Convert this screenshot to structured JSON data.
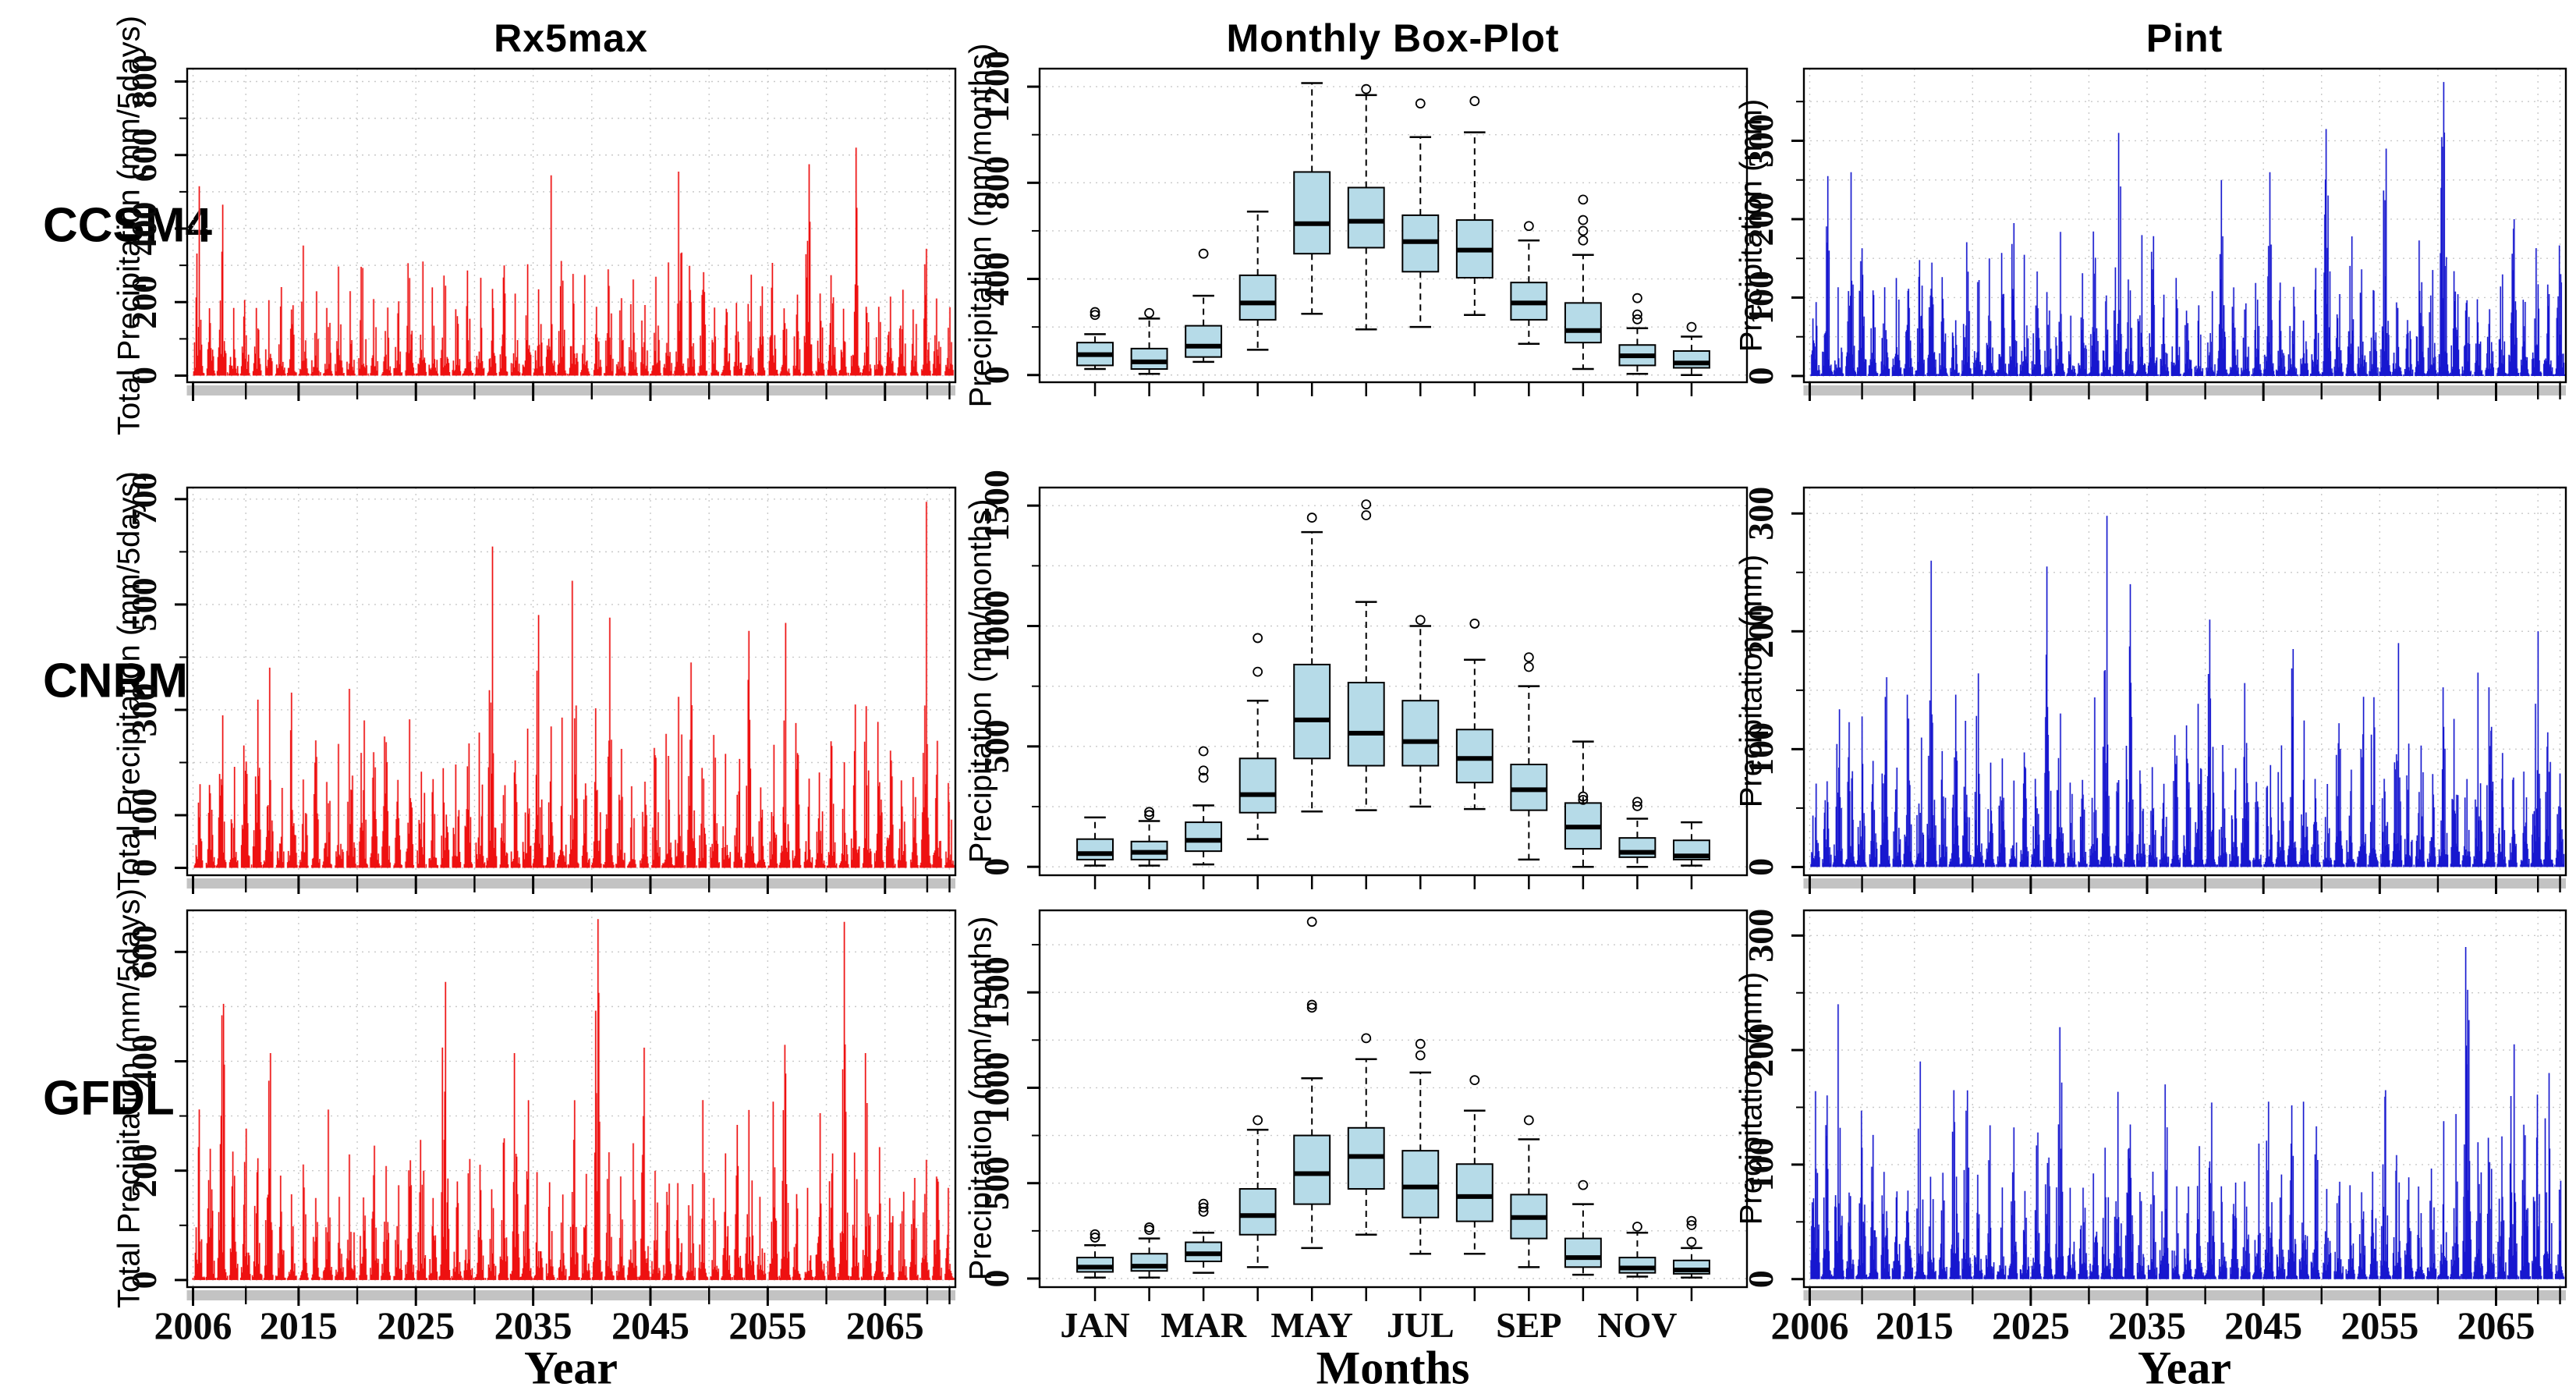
{
  "figure": {
    "column_titles": [
      "Rx5max",
      "Monthly Box-Plot",
      "Pint"
    ],
    "row_labels": [
      "CCSM4",
      "CNRM",
      "GFDL"
    ],
    "x_axis_titles": {
      "left": "Year",
      "middle": "Months",
      "right": "Year"
    },
    "colors": {
      "red_series": "#ee1111",
      "red_halo": "#f7bcbc",
      "blue_series": "#1717cf",
      "blue_halo": "#c9cdf3",
      "box_fill": "#b6dbe8",
      "grey_bar": "#c3c3c3",
      "grid": "#c9c9c9",
      "ink": "#000000"
    }
  },
  "chart_data": [
    {
      "type": "line",
      "subtype": "spike-series",
      "model": "CCSM4",
      "column": "Rx5max",
      "xlabel": "Year",
      "ylabel": "Total Precipitation (mm/5days)",
      "x_range": [
        2006,
        2070
      ],
      "x_tick_labels": [
        "2006",
        "2015",
        "2025",
        "2035",
        "2045",
        "2055",
        "2065"
      ],
      "x_tick_years": [
        2006,
        2015,
        2025,
        2035,
        2045,
        2055,
        2065
      ],
      "ylim": [
        0,
        800
      ],
      "y_axis_pad": [
        -18,
        835
      ],
      "y_tick_labels": [
        0,
        200,
        400,
        600,
        800
      ],
      "y_tick_marks": [
        0,
        100,
        200,
        300,
        400,
        500,
        600,
        700,
        800
      ],
      "series_color": "#ee1111",
      "halo_color": "#f7bcbc",
      "annual_peaks": {
        "typical_min": 180,
        "typical_max": 370,
        "notable": {
          "2006": 515,
          "2008": 465,
          "2036": 545,
          "2047": 555,
          "2058": 575,
          "2062": 620
        }
      },
      "seed": 101
    },
    {
      "type": "boxplot",
      "model": "CCSM4",
      "column": "Monthly Box-Plot",
      "xlabel": "Months",
      "ylabel": "Precipitation (mm/months)",
      "categories": [
        "JAN",
        "FEB",
        "MAR",
        "APR",
        "MAY",
        "JUN",
        "JUL",
        "AUG",
        "SEP",
        "OCT",
        "NOV",
        "DEC"
      ],
      "x_tick_labels": [
        "JAN",
        "MAR",
        "MAY",
        "JUL",
        "SEP",
        "NOV"
      ],
      "ylim": [
        0,
        1200
      ],
      "y_axis_pad": [
        -30,
        1275
      ],
      "y_tick_labels": [
        0,
        400,
        800,
        1200
      ],
      "y_tick_marks": [
        0,
        200,
        400,
        600,
        800,
        1000,
        1200
      ],
      "box_fill": "#b6dbe8",
      "stats": [
        {
          "month": "JAN",
          "whisker_low": 25,
          "q1": 40,
          "median": 85,
          "q3": 135,
          "whisker_high": 170,
          "outliers": [
            250,
            262
          ]
        },
        {
          "month": "FEB",
          "whisker_low": 5,
          "q1": 25,
          "median": 55,
          "q3": 110,
          "whisker_high": 235,
          "outliers": [
            258
          ]
        },
        {
          "month": "MAR",
          "whisker_low": 55,
          "q1": 75,
          "median": 120,
          "q3": 205,
          "whisker_high": 330,
          "outliers": [
            505
          ]
        },
        {
          "month": "APR",
          "whisker_low": 105,
          "q1": 230,
          "median": 300,
          "q3": 415,
          "whisker_high": 680,
          "outliers": []
        },
        {
          "month": "MAY",
          "whisker_low": 255,
          "q1": 505,
          "median": 630,
          "q3": 845,
          "whisker_high": 1215,
          "outliers": []
        },
        {
          "month": "JUN",
          "whisker_low": 190,
          "q1": 530,
          "median": 640,
          "q3": 780,
          "whisker_high": 1165,
          "outliers": [
            1190
          ]
        },
        {
          "month": "JUL",
          "whisker_low": 200,
          "q1": 430,
          "median": 555,
          "q3": 665,
          "whisker_high": 990,
          "outliers": [
            1130
          ]
        },
        {
          "month": "AUG",
          "whisker_low": 250,
          "q1": 405,
          "median": 520,
          "q3": 645,
          "whisker_high": 1010,
          "outliers": [
            1140
          ]
        },
        {
          "month": "SEP",
          "whisker_low": 130,
          "q1": 230,
          "median": 300,
          "q3": 385,
          "whisker_high": 560,
          "outliers": [
            620
          ]
        },
        {
          "month": "OCT",
          "whisker_low": 25,
          "q1": 135,
          "median": 185,
          "q3": 300,
          "whisker_high": 500,
          "outliers": [
            560,
            600,
            645,
            730
          ]
        },
        {
          "month": "NOV",
          "whisker_low": 5,
          "q1": 40,
          "median": 80,
          "q3": 125,
          "whisker_high": 195,
          "outliers": [
            232,
            252,
            320
          ]
        },
        {
          "month": "DEC",
          "whisker_low": 0,
          "q1": 30,
          "median": 50,
          "q3": 100,
          "whisker_high": 160,
          "outliers": [
            200
          ]
        }
      ]
    },
    {
      "type": "line",
      "subtype": "spike-series",
      "model": "CCSM4",
      "column": "Pint",
      "xlabel": "Year",
      "ylabel": "Precipitation (mm)",
      "x_range": [
        2006,
        2070
      ],
      "x_tick_labels": [
        "2006",
        "2015",
        "2025",
        "2035",
        "2045",
        "2055",
        "2065"
      ],
      "x_tick_years": [
        2006,
        2015,
        2025,
        2035,
        2045,
        2055,
        2065
      ],
      "ylim": [
        0,
        300
      ],
      "y_axis_pad": [
        -8,
        392
      ],
      "y_tick_labels": [
        0,
        100,
        200,
        300
      ],
      "y_tick_marks": [
        0,
        50,
        100,
        150,
        200,
        250,
        300,
        350
      ],
      "series_color": "#1717cf",
      "halo_color": "#c9cdf3",
      "annual_peaks": {
        "typical_min": 70,
        "typical_max": 185,
        "notable": {
          "2007": 255,
          "2009": 260,
          "2023": 195,
          "2032": 310,
          "2041": 250,
          "2045": 260,
          "2050": 315,
          "2055": 290,
          "2060": 375,
          "2066": 200
        }
      },
      "seed": 404
    },
    {
      "type": "line",
      "subtype": "spike-series",
      "model": "CNRM",
      "column": "Rx5max",
      "xlabel": "Year",
      "ylabel": "Total Precipitation (mm/5days)",
      "x_range": [
        2006,
        2070
      ],
      "x_tick_labels": [
        "2006",
        "2015",
        "2025",
        "2035",
        "2045",
        "2055",
        "2065"
      ],
      "x_tick_years": [
        2006,
        2015,
        2025,
        2035,
        2045,
        2055,
        2065
      ],
      "ylim": [
        0,
        700
      ],
      "y_axis_pad": [
        -14,
        722
      ],
      "y_tick_labels": [
        0,
        100,
        300,
        500,
        700
      ],
      "y_tick_marks": [
        0,
        100,
        200,
        300,
        400,
        500,
        600,
        700
      ],
      "series_color": "#ee1111",
      "halo_color": "#f7bcbc",
      "annual_peaks": {
        "typical_min": 150,
        "typical_max": 340,
        "notable": {
          "2012": 380,
          "2019": 340,
          "2031": 610,
          "2035": 480,
          "2038": 545,
          "2041": 475,
          "2048": 390,
          "2053": 450,
          "2056": 465,
          "2068": 695
        }
      },
      "seed": 202
    },
    {
      "type": "boxplot",
      "model": "CNRM",
      "column": "Monthly Box-Plot",
      "xlabel": "Months",
      "ylabel": "Precipitation (mm/months)",
      "categories": [
        "JAN",
        "FEB",
        "MAR",
        "APR",
        "MAY",
        "JUN",
        "JUL",
        "AUG",
        "SEP",
        "OCT",
        "NOV",
        "DEC"
      ],
      "x_tick_labels": [
        "JAN",
        "MAR",
        "MAY",
        "JUL",
        "SEP",
        "NOV"
      ],
      "ylim": [
        0,
        1500
      ],
      "y_axis_pad": [
        -35,
        1575
      ],
      "y_tick_labels": [
        0,
        500,
        1000,
        1500
      ],
      "y_tick_marks": [
        0,
        250,
        500,
        750,
        1000,
        1250,
        1500
      ],
      "box_fill": "#b6dbe8",
      "stats": [
        {
          "month": "JAN",
          "whisker_low": 5,
          "q1": 30,
          "median": 55,
          "q3": 115,
          "whisker_high": 205,
          "outliers": []
        },
        {
          "month": "FEB",
          "whisker_low": 5,
          "q1": 30,
          "median": 60,
          "q3": 105,
          "whisker_high": 190,
          "outliers": [
            215,
            228
          ]
        },
        {
          "month": "MAR",
          "whisker_low": 10,
          "q1": 65,
          "median": 110,
          "q3": 185,
          "whisker_high": 255,
          "outliers": [
            370,
            400,
            480
          ]
        },
        {
          "month": "APR",
          "whisker_low": 115,
          "q1": 225,
          "median": 300,
          "q3": 450,
          "whisker_high": 690,
          "outliers": [
            810,
            950
          ]
        },
        {
          "month": "MAY",
          "whisker_low": 230,
          "q1": 450,
          "median": 610,
          "q3": 840,
          "whisker_high": 1390,
          "outliers": [
            1450
          ]
        },
        {
          "month": "JUN",
          "whisker_low": 235,
          "q1": 420,
          "median": 555,
          "q3": 765,
          "whisker_high": 1100,
          "outliers": [
            1460,
            1505
          ]
        },
        {
          "month": "JUL",
          "whisker_low": 250,
          "q1": 420,
          "median": 520,
          "q3": 690,
          "whisker_high": 1000,
          "outliers": [
            1025
          ]
        },
        {
          "month": "AUG",
          "whisker_low": 240,
          "q1": 350,
          "median": 450,
          "q3": 570,
          "whisker_high": 860,
          "outliers": [
            1010
          ]
        },
        {
          "month": "SEP",
          "whisker_low": 30,
          "q1": 235,
          "median": 320,
          "q3": 425,
          "whisker_high": 750,
          "outliers": [
            830,
            870
          ]
        },
        {
          "month": "OCT",
          "whisker_low": 0,
          "q1": 75,
          "median": 165,
          "q3": 265,
          "whisker_high": 520,
          "outliers": [
            278,
            292
          ]
        },
        {
          "month": "NOV",
          "whisker_low": 0,
          "q1": 40,
          "median": 60,
          "q3": 120,
          "whisker_high": 200,
          "outliers": [
            252,
            270
          ]
        },
        {
          "month": "DEC",
          "whisker_low": 5,
          "q1": 30,
          "median": 45,
          "q3": 110,
          "whisker_high": 185,
          "outliers": []
        }
      ]
    },
    {
      "type": "line",
      "subtype": "spike-series",
      "model": "CNRM",
      "column": "Pint",
      "xlabel": "Year",
      "ylabel": "Precipitation (mm)",
      "x_range": [
        2006,
        2070
      ],
      "x_tick_labels": [
        "2006",
        "2015",
        "2025",
        "2035",
        "2045",
        "2055",
        "2065"
      ],
      "x_tick_years": [
        2006,
        2015,
        2025,
        2035,
        2045,
        2055,
        2065
      ],
      "ylim": [
        0,
        300
      ],
      "y_axis_pad": [
        -7,
        322
      ],
      "y_tick_labels": [
        0,
        100,
        200,
        300
      ],
      "y_tick_marks": [
        0,
        50,
        100,
        150,
        200,
        250,
        300
      ],
      "series_color": "#1717cf",
      "halo_color": "#c9cdf3",
      "annual_peaks": {
        "typical_min": 70,
        "typical_max": 165,
        "notable": {
          "2016": 260,
          "2026": 255,
          "2031": 298,
          "2033": 240,
          "2040": 210,
          "2047": 185,
          "2056": 190,
          "2063": 165,
          "2068": 200
        }
      },
      "seed": 505
    },
    {
      "type": "line",
      "subtype": "spike-series",
      "model": "GFDL",
      "column": "Rx5max",
      "xlabel": "Year",
      "ylabel": "Total Precipitation (mm/5days)",
      "x_range": [
        2006,
        2070
      ],
      "x_tick_labels": [
        "2006",
        "2015",
        "2025",
        "2035",
        "2045",
        "2055",
        "2065"
      ],
      "x_tick_years": [
        2006,
        2015,
        2025,
        2035,
        2045,
        2055,
        2065
      ],
      "ylim": [
        0,
        600
      ],
      "y_axis_pad": [
        -13,
        676
      ],
      "y_tick_labels": [
        0,
        200,
        400,
        600
      ],
      "y_tick_marks": [
        0,
        100,
        200,
        300,
        400,
        500,
        600
      ],
      "series_color": "#ee1111",
      "halo_color": "#f7bcbc",
      "annual_peaks": {
        "typical_min": 150,
        "typical_max": 330,
        "notable": {
          "2008": 505,
          "2012": 415,
          "2027": 545,
          "2033": 415,
          "2040": 660,
          "2044": 425,
          "2056": 430,
          "2061": 655,
          "2063": 415
        }
      },
      "seed": 303
    },
    {
      "type": "boxplot",
      "model": "GFDL",
      "column": "Monthly Box-Plot",
      "xlabel": "Months",
      "ylabel": "Precipitation (mm/months)",
      "categories": [
        "JAN",
        "FEB",
        "MAR",
        "APR",
        "MAY",
        "JUN",
        "JUL",
        "AUG",
        "SEP",
        "OCT",
        "NOV",
        "DEC"
      ],
      "x_tick_labels": [
        "JAN",
        "MAR",
        "MAY",
        "JUL",
        "SEP",
        "NOV"
      ],
      "ylim": [
        0,
        1500
      ],
      "y_axis_pad": [
        -45,
        1930
      ],
      "y_tick_labels": [
        0,
        500,
        1000,
        1500
      ],
      "y_tick_marks": [
        0,
        250,
        500,
        750,
        1000,
        1250,
        1500,
        1750
      ],
      "box_fill": "#b6dbe8",
      "stats": [
        {
          "month": "JAN",
          "whisker_low": 5,
          "q1": 35,
          "median": 60,
          "q3": 110,
          "whisker_high": 175,
          "outliers": [
            215,
            232
          ]
        },
        {
          "month": "FEB",
          "whisker_low": 5,
          "q1": 40,
          "median": 65,
          "q3": 130,
          "whisker_high": 210,
          "outliers": [
            255,
            268
          ]
        },
        {
          "month": "MAR",
          "whisker_low": 30,
          "q1": 90,
          "median": 130,
          "q3": 190,
          "whisker_high": 240,
          "outliers": [
            350,
            372,
            392
          ]
        },
        {
          "month": "APR",
          "whisker_low": 60,
          "q1": 230,
          "median": 330,
          "q3": 470,
          "whisker_high": 780,
          "outliers": [
            830
          ]
        },
        {
          "month": "MAY",
          "whisker_low": 160,
          "q1": 390,
          "median": 550,
          "q3": 750,
          "whisker_high": 1050,
          "outliers": [
            1420,
            1435,
            1870
          ]
        },
        {
          "month": "JUN",
          "whisker_low": 230,
          "q1": 470,
          "median": 640,
          "q3": 790,
          "whisker_high": 1150,
          "outliers": [
            1260
          ]
        },
        {
          "month": "JUL",
          "whisker_low": 130,
          "q1": 320,
          "median": 480,
          "q3": 670,
          "whisker_high": 1080,
          "outliers": [
            1170,
            1230
          ]
        },
        {
          "month": "AUG",
          "whisker_low": 130,
          "q1": 300,
          "median": 430,
          "q3": 600,
          "whisker_high": 880,
          "outliers": [
            1040
          ]
        },
        {
          "month": "SEP",
          "whisker_low": 60,
          "q1": 210,
          "median": 320,
          "q3": 440,
          "whisker_high": 730,
          "outliers": [
            830
          ]
        },
        {
          "month": "OCT",
          "whisker_low": 20,
          "q1": 60,
          "median": 110,
          "q3": 210,
          "whisker_high": 390,
          "outliers": [
            490
          ]
        },
        {
          "month": "NOV",
          "whisker_low": 10,
          "q1": 30,
          "median": 55,
          "q3": 110,
          "whisker_high": 240,
          "outliers": [
            272
          ]
        },
        {
          "month": "DEC",
          "whisker_low": 5,
          "q1": 25,
          "median": 45,
          "q3": 95,
          "whisker_high": 160,
          "outliers": [
            192,
            280,
            302
          ]
        }
      ]
    },
    {
      "type": "line",
      "subtype": "spike-series",
      "model": "GFDL",
      "column": "Pint",
      "xlabel": "Year",
      "ylabel": "Precipitation (mm)",
      "x_range": [
        2006,
        2070
      ],
      "x_tick_labels": [
        "2006",
        "2015",
        "2025",
        "2035",
        "2045",
        "2055",
        "2065"
      ],
      "x_tick_years": [
        2006,
        2015,
        2025,
        2035,
        2045,
        2055,
        2065
      ],
      "ylim": [
        0,
        300
      ],
      "y_axis_pad": [
        -7,
        322
      ],
      "y_tick_labels": [
        0,
        100,
        200,
        300
      ],
      "y_tick_marks": [
        0,
        50,
        100,
        150,
        200,
        250,
        300
      ],
      "series_color": "#1717cf",
      "halo_color": "#c9cdf3",
      "annual_peaks": {
        "typical_min": 75,
        "typical_max": 165,
        "notable": {
          "2008": 240,
          "2015": 190,
          "2018": 165,
          "2027": 220,
          "2036": 170,
          "2048": 155,
          "2055": 165,
          "2062": 290,
          "2066": 205,
          "2069": 180
        }
      },
      "seed": 606
    }
  ]
}
